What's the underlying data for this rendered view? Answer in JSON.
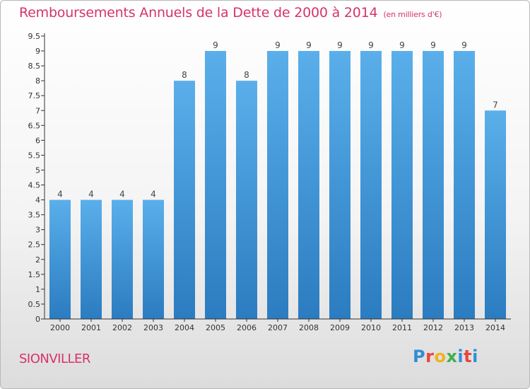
{
  "header": {
    "title": "Remboursements Annuels de la Dette de 2000 à 2014",
    "unit": "(en milliers d'€)"
  },
  "footer": {
    "city": "SIONVILLER",
    "logo_letters": [
      "P",
      "r",
      "o",
      "x",
      "i",
      "t",
      "i"
    ],
    "logo_colors": [
      "#2f8fd8",
      "#e8453c",
      "#f0b21f",
      "#3fb04b",
      "#2f8fd8",
      "#e8453c",
      "#2f8fd8"
    ]
  },
  "colors": {
    "title": "#d6336c",
    "bar_light": "#5aafea",
    "bar_dark": "#2b7cc0",
    "axis": "#333333"
  },
  "chart_data": {
    "type": "bar",
    "categories": [
      "2000",
      "2001",
      "2002",
      "2003",
      "2004",
      "2005",
      "2006",
      "2007",
      "2008",
      "2009",
      "2010",
      "2011",
      "2012",
      "2013",
      "2014"
    ],
    "values": [
      4,
      4,
      4,
      4,
      8,
      9,
      8,
      9,
      9,
      9,
      9,
      9,
      9,
      9,
      7
    ],
    "data_labels": [
      "4",
      "4",
      "4",
      "4",
      "8",
      "9",
      "8",
      "9",
      "9",
      "9",
      "9",
      "9",
      "9",
      "9",
      "7"
    ],
    "title": "Remboursements Annuels de la Dette de 2000 à 2014",
    "subtitle": "(en milliers d'€)",
    "ylim": [
      0,
      9.5
    ],
    "yticks": [
      "0",
      "0.5",
      "1",
      "1.5",
      "2",
      "2.5",
      "3",
      "3.5",
      "4",
      "4.5",
      "5",
      "5.5",
      "6",
      "6.5",
      "7",
      "7.5",
      "8",
      "8.5",
      "9",
      "9.5"
    ],
    "grid": false
  }
}
